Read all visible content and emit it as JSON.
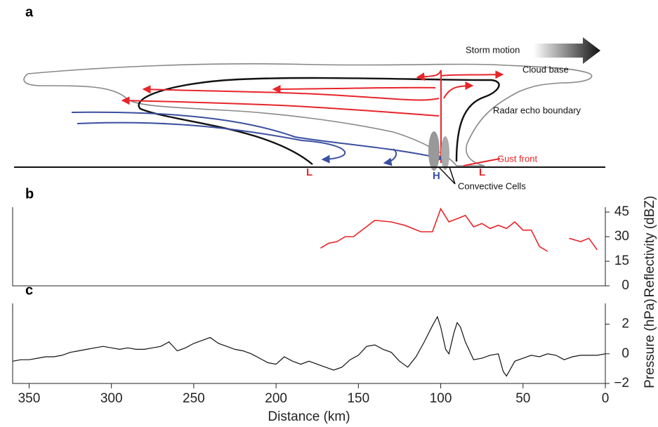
{
  "panel_a": {
    "panel_label": "a",
    "storm_motion": "Storm motion",
    "cloud_base": "Cloud base",
    "radar_echo_boundary": "Radar echo boundary",
    "gust_front": "Gust front",
    "convective_cells": "Convective Cells",
    "low_left": "L",
    "high": "H",
    "low_right": "L"
  },
  "chart_data": [
    {
      "type": "line",
      "panel_label": "b",
      "ylabel": "Reflectivity (dBZ)",
      "xlim": [
        360,
        0
      ],
      "ylim": [
        0,
        48
      ],
      "yticks": [
        0,
        15,
        30,
        45
      ],
      "series": [
        {
          "color": "#e8252a",
          "x": [
            173,
            168,
            163,
            158,
            153,
            140,
            130,
            122,
            112,
            105,
            100,
            95,
            85,
            80,
            75,
            70,
            65,
            60,
            55,
            50,
            45,
            40,
            35,
            28,
            22,
            15,
            10,
            5
          ],
          "values": [
            23,
            26,
            27,
            30,
            30,
            40,
            39,
            37,
            33,
            33,
            47,
            39,
            43,
            36,
            38,
            35,
            37,
            35,
            39,
            34,
            34,
            24,
            21,
            null,
            29,
            27,
            29,
            22
          ]
        }
      ]
    },
    {
      "type": "line",
      "panel_label": "c",
      "ylabel": "Pressure (hPa)",
      "xlabel": "Distance (km)",
      "xlim": [
        360,
        0
      ],
      "ylim": [
        -2,
        3.4
      ],
      "yticks": [
        {
          "value": -2,
          "label": "−2"
        },
        0,
        2
      ],
      "xticks": [
        350,
        300,
        250,
        200,
        150,
        100,
        50,
        0
      ],
      "series": [
        {
          "color": "#111111",
          "x": [
            360,
            355,
            350,
            345,
            340,
            335,
            330,
            325,
            320,
            315,
            310,
            305,
            300,
            295,
            290,
            285,
            280,
            275,
            270,
            265,
            260,
            255,
            250,
            245,
            240,
            235,
            230,
            225,
            220,
            215,
            210,
            205,
            200,
            195,
            190,
            185,
            180,
            175,
            170,
            165,
            160,
            155,
            150,
            145,
            140,
            135,
            130,
            125,
            120,
            115,
            110,
            105,
            102,
            100,
            97,
            95,
            92,
            90,
            88,
            85,
            80,
            75,
            70,
            65,
            62,
            60,
            55,
            50,
            45,
            40,
            35,
            30,
            25,
            20,
            15,
            10,
            5,
            0
          ],
          "values": [
            -0.5,
            -0.4,
            -0.4,
            -0.3,
            -0.2,
            -0.2,
            -0.1,
            0.1,
            0.2,
            0.3,
            0.4,
            0.5,
            0.4,
            0.3,
            0.4,
            0.3,
            0.3,
            0.4,
            0.5,
            0.8,
            0.2,
            0.4,
            0.7,
            0.9,
            1.1,
            0.7,
            0.5,
            0.3,
            0.2,
            0.0,
            -0.3,
            -0.6,
            -0.7,
            -0.2,
            -0.5,
            -0.7,
            -0.5,
            -0.7,
            -0.9,
            -1.1,
            -0.9,
            -0.4,
            -0.1,
            0.5,
            0.6,
            0.3,
            0.1,
            -0.5,
            -0.9,
            -0.2,
            0.8,
            1.9,
            2.5,
            1.8,
            0.3,
            0.0,
            1.4,
            2.1,
            1.8,
            0.8,
            -0.4,
            -0.3,
            -0.1,
            0.0,
            -1.2,
            -1.5,
            -0.5,
            -0.3,
            -0.1,
            -0.2,
            0.0,
            -0.1,
            -0.4,
            -0.2,
            -0.1,
            -0.1,
            -0.1,
            0.0
          ]
        }
      ]
    }
  ]
}
